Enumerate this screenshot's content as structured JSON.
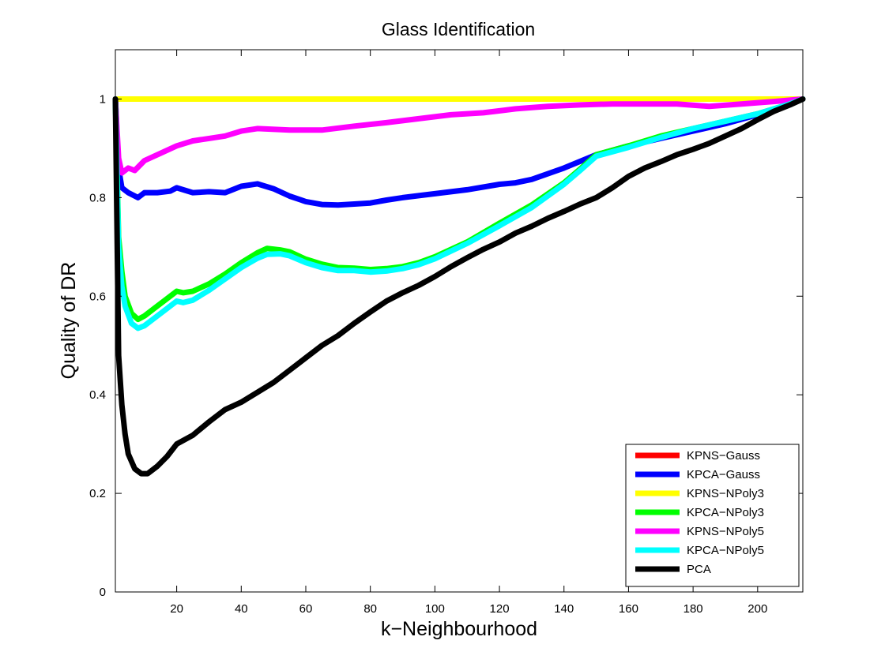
{
  "chart_data": {
    "type": "line",
    "title": "Glass Identification",
    "xlabel": "k−Neighbourhood",
    "ylabel": "Quality of DR",
    "xlim": [
      1,
      214
    ],
    "ylim": [
      0,
      1.1
    ],
    "xticks": [
      20,
      40,
      60,
      80,
      100,
      120,
      140,
      160,
      180,
      200
    ],
    "xtick_labels": [
      "20",
      "40",
      "60",
      "80",
      "100",
      "120",
      "140",
      "160",
      "180",
      "200"
    ],
    "yticks": [
      0,
      0.2,
      0.4,
      0.6,
      0.8,
      1
    ],
    "ytick_labels": [
      "0",
      "0.2",
      "0.4",
      "0.6",
      "0.8",
      "1"
    ],
    "grid": false,
    "legend_position": "bottom-right",
    "series": [
      {
        "name": "KPNS−Gauss",
        "color": "#ff0000",
        "points": [
          [
            1,
            1.0
          ],
          [
            214,
            1.0
          ]
        ]
      },
      {
        "name": "KPCA−Gauss",
        "color": "#0000ff",
        "points": [
          [
            1,
            1.0
          ],
          [
            2,
            0.86
          ],
          [
            3,
            0.82
          ],
          [
            5,
            0.81
          ],
          [
            8,
            0.8
          ],
          [
            10,
            0.81
          ],
          [
            14,
            0.81
          ],
          [
            18,
            0.813
          ],
          [
            20,
            0.82
          ],
          [
            25,
            0.81
          ],
          [
            30,
            0.812
          ],
          [
            35,
            0.81
          ],
          [
            40,
            0.823
          ],
          [
            45,
            0.828
          ],
          [
            50,
            0.818
          ],
          [
            55,
            0.803
          ],
          [
            60,
            0.792
          ],
          [
            65,
            0.786
          ],
          [
            70,
            0.785
          ],
          [
            75,
            0.787
          ],
          [
            80,
            0.789
          ],
          [
            85,
            0.795
          ],
          [
            90,
            0.8
          ],
          [
            95,
            0.804
          ],
          [
            100,
            0.808
          ],
          [
            110,
            0.816
          ],
          [
            120,
            0.827
          ],
          [
            125,
            0.83
          ],
          [
            130,
            0.837
          ],
          [
            140,
            0.86
          ],
          [
            150,
            0.887
          ],
          [
            160,
            0.905
          ],
          [
            170,
            0.92
          ],
          [
            180,
            0.935
          ],
          [
            190,
            0.95
          ],
          [
            200,
            0.968
          ],
          [
            210,
            0.99
          ],
          [
            214,
            1.0
          ]
        ]
      },
      {
        "name": "KPNS−NPoly3",
        "color": "#ffff00",
        "points": [
          [
            1,
            1.0
          ],
          [
            214,
            1.0
          ]
        ]
      },
      {
        "name": "KPCA−NPoly3",
        "color": "#00ff00",
        "points": [
          [
            1,
            1.0
          ],
          [
            2,
            0.72
          ],
          [
            3,
            0.65
          ],
          [
            4,
            0.6
          ],
          [
            6,
            0.565
          ],
          [
            8,
            0.553
          ],
          [
            10,
            0.56
          ],
          [
            13,
            0.575
          ],
          [
            16,
            0.59
          ],
          [
            20,
            0.61
          ],
          [
            22,
            0.607
          ],
          [
            25,
            0.61
          ],
          [
            30,
            0.625
          ],
          [
            35,
            0.645
          ],
          [
            40,
            0.668
          ],
          [
            45,
            0.688
          ],
          [
            48,
            0.697
          ],
          [
            52,
            0.694
          ],
          [
            55,
            0.69
          ],
          [
            60,
            0.675
          ],
          [
            65,
            0.665
          ],
          [
            70,
            0.658
          ],
          [
            75,
            0.657
          ],
          [
            80,
            0.654
          ],
          [
            85,
            0.656
          ],
          [
            90,
            0.66
          ],
          [
            95,
            0.668
          ],
          [
            100,
            0.68
          ],
          [
            110,
            0.71
          ],
          [
            120,
            0.748
          ],
          [
            130,
            0.785
          ],
          [
            140,
            0.83
          ],
          [
            145,
            0.858
          ],
          [
            150,
            0.887
          ],
          [
            160,
            0.905
          ],
          [
            170,
            0.925
          ],
          [
            180,
            0.94
          ],
          [
            190,
            0.955
          ],
          [
            200,
            0.97
          ],
          [
            210,
            0.99
          ],
          [
            214,
            1.0
          ]
        ]
      },
      {
        "name": "KPNS−NPoly5",
        "color": "#ff00ff",
        "points": [
          [
            1,
            1.0
          ],
          [
            2,
            0.88
          ],
          [
            3,
            0.85
          ],
          [
            5,
            0.86
          ],
          [
            7,
            0.855
          ],
          [
            10,
            0.875
          ],
          [
            15,
            0.89
          ],
          [
            20,
            0.905
          ],
          [
            25,
            0.915
          ],
          [
            30,
            0.92
          ],
          [
            35,
            0.925
          ],
          [
            40,
            0.935
          ],
          [
            45,
            0.94
          ],
          [
            55,
            0.937
          ],
          [
            65,
            0.937
          ],
          [
            75,
            0.945
          ],
          [
            85,
            0.952
          ],
          [
            95,
            0.96
          ],
          [
            105,
            0.968
          ],
          [
            115,
            0.972
          ],
          [
            125,
            0.98
          ],
          [
            135,
            0.985
          ],
          [
            145,
            0.988
          ],
          [
            155,
            0.99
          ],
          [
            165,
            0.99
          ],
          [
            175,
            0.99
          ],
          [
            185,
            0.985
          ],
          [
            195,
            0.99
          ],
          [
            205,
            0.995
          ],
          [
            214,
            1.0
          ]
        ]
      },
      {
        "name": "KPCA−NPoly5",
        "color": "#00ffff",
        "points": [
          [
            1,
            1.0
          ],
          [
            2,
            0.7
          ],
          [
            3,
            0.62
          ],
          [
            4,
            0.58
          ],
          [
            6,
            0.545
          ],
          [
            8,
            0.535
          ],
          [
            10,
            0.54
          ],
          [
            13,
            0.555
          ],
          [
            16,
            0.57
          ],
          [
            20,
            0.59
          ],
          [
            22,
            0.587
          ],
          [
            25,
            0.592
          ],
          [
            30,
            0.612
          ],
          [
            35,
            0.635
          ],
          [
            40,
            0.658
          ],
          [
            45,
            0.677
          ],
          [
            48,
            0.685
          ],
          [
            52,
            0.686
          ],
          [
            55,
            0.682
          ],
          [
            60,
            0.668
          ],
          [
            65,
            0.658
          ],
          [
            70,
            0.652
          ],
          [
            75,
            0.652
          ],
          [
            80,
            0.649
          ],
          [
            85,
            0.651
          ],
          [
            90,
            0.656
          ],
          [
            95,
            0.664
          ],
          [
            100,
            0.676
          ],
          [
            110,
            0.707
          ],
          [
            120,
            0.743
          ],
          [
            130,
            0.78
          ],
          [
            140,
            0.827
          ],
          [
            145,
            0.855
          ],
          [
            150,
            0.884
          ],
          [
            160,
            0.902
          ],
          [
            170,
            0.922
          ],
          [
            180,
            0.94
          ],
          [
            190,
            0.955
          ],
          [
            200,
            0.97
          ],
          [
            210,
            0.99
          ],
          [
            214,
            1.0
          ]
        ]
      },
      {
        "name": "PCA",
        "color": "#000000",
        "points": [
          [
            1,
            1.0
          ],
          [
            2,
            0.48
          ],
          [
            3,
            0.38
          ],
          [
            4,
            0.32
          ],
          [
            5,
            0.28
          ],
          [
            7,
            0.25
          ],
          [
            9,
            0.24
          ],
          [
            11,
            0.24
          ],
          [
            14,
            0.255
          ],
          [
            17,
            0.275
          ],
          [
            20,
            0.3
          ],
          [
            25,
            0.318
          ],
          [
            30,
            0.345
          ],
          [
            35,
            0.37
          ],
          [
            40,
            0.385
          ],
          [
            45,
            0.405
          ],
          [
            50,
            0.425
          ],
          [
            55,
            0.45
          ],
          [
            60,
            0.475
          ],
          [
            65,
            0.5
          ],
          [
            70,
            0.52
          ],
          [
            75,
            0.545
          ],
          [
            80,
            0.568
          ],
          [
            85,
            0.59
          ],
          [
            90,
            0.607
          ],
          [
            95,
            0.622
          ],
          [
            100,
            0.64
          ],
          [
            105,
            0.66
          ],
          [
            110,
            0.678
          ],
          [
            115,
            0.695
          ],
          [
            120,
            0.71
          ],
          [
            125,
            0.728
          ],
          [
            130,
            0.742
          ],
          [
            135,
            0.758
          ],
          [
            140,
            0.772
          ],
          [
            145,
            0.787
          ],
          [
            150,
            0.8
          ],
          [
            155,
            0.82
          ],
          [
            160,
            0.843
          ],
          [
            165,
            0.86
          ],
          [
            170,
            0.873
          ],
          [
            175,
            0.887
          ],
          [
            180,
            0.898
          ],
          [
            185,
            0.91
          ],
          [
            190,
            0.925
          ],
          [
            195,
            0.94
          ],
          [
            200,
            0.958
          ],
          [
            205,
            0.975
          ],
          [
            210,
            0.988
          ],
          [
            214,
            1.0
          ]
        ]
      }
    ]
  }
}
